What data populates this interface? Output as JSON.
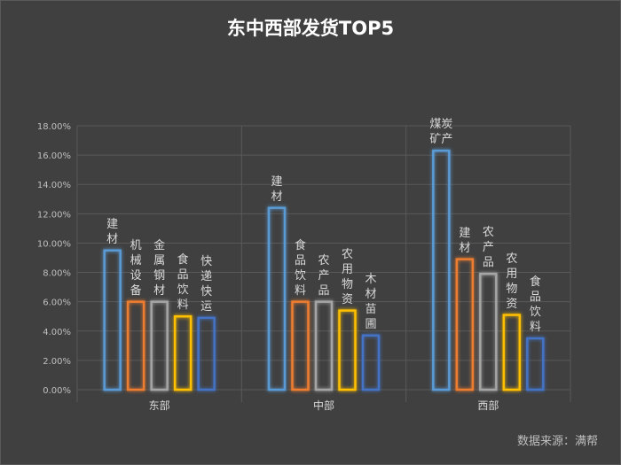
{
  "chart_data": {
    "type": "bar",
    "title": "东中西部发货TOP5",
    "source": "数据来源：满帮",
    "ylim": [
      0,
      18
    ],
    "yticks": [
      "0.00%",
      "2.00%",
      "4.00%",
      "6.00%",
      "8.00%",
      "10.00%",
      "12.00%",
      "14.00%",
      "16.00%",
      "18.00%"
    ],
    "grid": true,
    "colors": [
      "#5b9bd5",
      "#ed7d31",
      "#a5a5a5",
      "#ffc000",
      "#4472c4"
    ],
    "groups": [
      {
        "name": "东部",
        "items": [
          {
            "label": "建材",
            "value": 9.5
          },
          {
            "label": "机械设备",
            "value": 6.0
          },
          {
            "label": "金属钢材",
            "value": 6.0
          },
          {
            "label": "食品饮料",
            "value": 5.0
          },
          {
            "label": "快递快运",
            "value": 4.9
          }
        ]
      },
      {
        "name": "中部",
        "items": [
          {
            "label": "建材",
            "value": 12.4
          },
          {
            "label": "食品饮料",
            "value": 6.0
          },
          {
            "label": "农产品",
            "value": 6.0
          },
          {
            "label": "农用物资",
            "value": 5.4
          },
          {
            "label": "木材苗圃",
            "value": 3.7
          }
        ]
      },
      {
        "name": "西部",
        "items": [
          {
            "label": "煤炭矿产",
            "value": 16.3
          },
          {
            "label": "建材",
            "value": 8.9
          },
          {
            "label": "农产品",
            "value": 7.9
          },
          {
            "label": "农用物资",
            "value": 5.1
          },
          {
            "label": "食品饮料",
            "value": 3.5
          }
        ]
      }
    ]
  }
}
